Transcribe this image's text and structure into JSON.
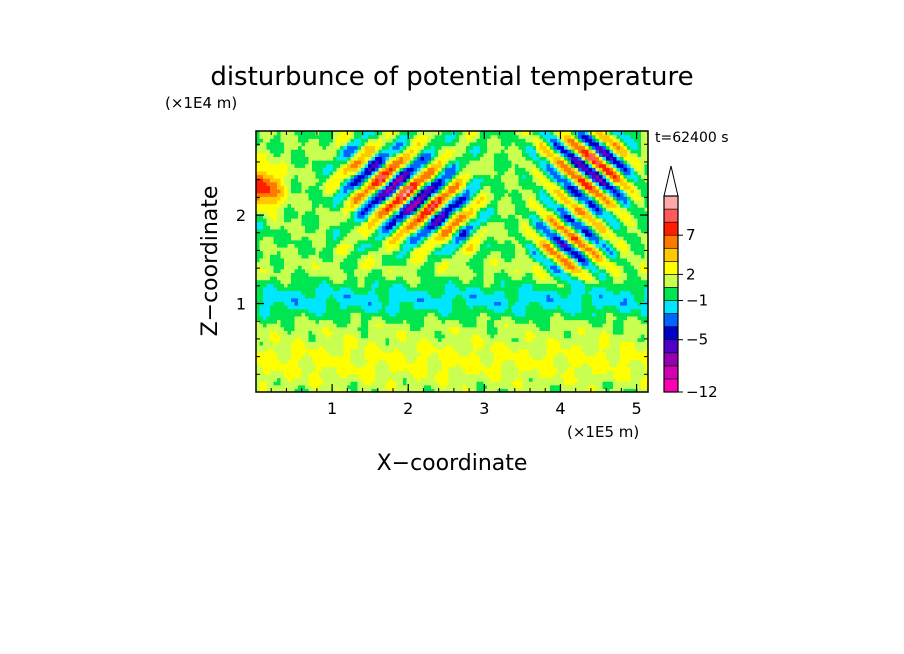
{
  "chart_data": {
    "type": "heatmap",
    "title": "disturbunce of potential temperature",
    "time_label": "t=62400 s",
    "xlabel": "X−coordinate",
    "ylabel": "Z−coordinate",
    "x_unit": "(×1E5 m)",
    "y_unit": "(×1E4 m)",
    "xlim": [
      0,
      5.15
    ],
    "ylim": [
      0,
      2.95
    ],
    "x_ticks": [
      1,
      2,
      3,
      4,
      5
    ],
    "y_ticks": [
      1,
      2
    ],
    "x_tick_labels": [
      "1",
      "2",
      "3",
      "4",
      "5"
    ],
    "y_tick_labels": [
      "1",
      "2"
    ],
    "colorbar": {
      "tick_labels": [
        "7",
        "2",
        "−1",
        "−5",
        "−12"
      ],
      "tick_levels": [
        5,
        2,
        0,
        -3,
        -7
      ],
      "levels": [
        -7,
        -6,
        -5,
        -4,
        -3,
        -2,
        -1,
        0,
        1,
        2,
        3,
        4,
        5,
        6,
        7
      ],
      "colors": [
        "#ff00b4",
        "#d200b4",
        "#9600b4",
        "#5000c8",
        "#0000c8",
        "#0064ff",
        "#00e6ff",
        "#00e650",
        "#c8ff50",
        "#ffff00",
        "#ffc800",
        "#ff7800",
        "#ff1e00",
        "#ff5a5a",
        "#ffaaaa",
        "#ffffff"
      ],
      "extend_max": true
    },
    "field_features": [
      {
        "kind": "band",
        "z_center": 1.05,
        "z_width": 0.18,
        "value": -1.4
      },
      {
        "kind": "band",
        "z_center": 0.72,
        "z_width": 0.1,
        "value": 0.2
      },
      {
        "kind": "band",
        "z_center": 1.4,
        "z_width": 0.12,
        "value": 0.4
      },
      {
        "kind": "band",
        "z_center": 0.35,
        "z_width": 0.3,
        "value": 1.2
      },
      {
        "kind": "tilted_waves",
        "x_range": [
          0.8,
          3.2
        ],
        "z_range": [
          1.5,
          2.95
        ],
        "tilt": -1.3,
        "wavelength": 0.55,
        "amplitude": 5.5
      },
      {
        "kind": "tilted_waves",
        "x_range": [
          3.4,
          5.15
        ],
        "z_range": [
          1.4,
          2.95
        ],
        "tilt": 1.4,
        "wavelength": 0.5,
        "amplitude": 6.5
      },
      {
        "kind": "blob",
        "x": 0.1,
        "z": 2.3,
        "r": 0.25,
        "value": 4.5
      },
      {
        "kind": "blob",
        "x": 0.05,
        "z": 1.95,
        "r": 0.15,
        "value": -1.0
      }
    ]
  }
}
